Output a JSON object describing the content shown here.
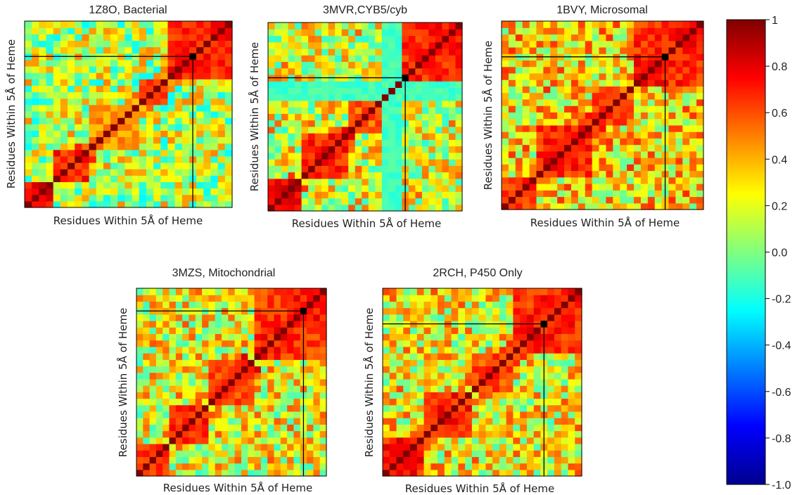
{
  "chart_data": [
    {
      "type": "heatmap",
      "title": "1Z8O, Bacterial",
      "xlabel": "Residues Within 5Å of Heme",
      "ylabel": "Residues Within 5Å of Heme",
      "n": 29,
      "marker_index": 23,
      "seed": 11,
      "blocks": [
        [
          0,
          3,
          0.8
        ],
        [
          4,
          8,
          0.72
        ],
        [
          9,
          15,
          0.5
        ],
        [
          16,
          19,
          0.7
        ],
        [
          20,
          28,
          0.7
        ]
      ],
      "bands": [],
      "background": 0.12
    },
    {
      "type": "heatmap",
      "title": "3MVR,CYB5/cyb",
      "xlabel": "Residues Within 5Å of Heme",
      "ylabel": "Residues Within 5Å of Heme",
      "n": 29,
      "marker_index": 20,
      "seed": 23,
      "blocks": [
        [
          0,
          4,
          0.8
        ],
        [
          5,
          11,
          0.72
        ],
        [
          12,
          16,
          0.6
        ],
        [
          20,
          28,
          0.72
        ]
      ],
      "bands": [
        [
          17,
          19,
          -0.12
        ]
      ],
      "background": 0.2
    },
    {
      "type": "heatmap",
      "title": "1BVY, Microsomal",
      "xlabel": "Residues Within 5Å of Heme",
      "ylabel": "Residues Within 5Å of Heme",
      "n": 29,
      "marker_index": 23,
      "seed": 37,
      "blocks": [
        [
          0,
          4,
          0.7
        ],
        [
          5,
          12,
          0.72
        ],
        [
          13,
          18,
          0.62
        ],
        [
          19,
          28,
          0.72
        ]
      ],
      "bands": [],
      "background": 0.3
    },
    {
      "type": "heatmap",
      "title": "3MZS, Mitochondrial",
      "xlabel": "Residues Within 5Å of Heme",
      "ylabel": "Residues Within 5Å of Heme",
      "n": 29,
      "marker_index": 25,
      "seed": 53,
      "blocks": [
        [
          0,
          4,
          0.7
        ],
        [
          5,
          10,
          0.72
        ],
        [
          11,
          17,
          0.65
        ],
        [
          18,
          28,
          0.72
        ]
      ],
      "bands": [],
      "background": 0.22
    },
    {
      "type": "heatmap",
      "title": "2RCH, P450 Only",
      "xlabel": "Residues Within 5Å of Heme",
      "ylabel": "Residues Within 5Å of Heme",
      "n": 29,
      "marker_index": 23,
      "seed": 71,
      "blocks": [
        [
          0,
          5,
          0.75
        ],
        [
          6,
          12,
          0.72
        ],
        [
          13,
          18,
          0.62
        ],
        [
          19,
          28,
          0.72
        ]
      ],
      "bands": [],
      "background": 0.25
    }
  ],
  "colorbar": {
    "ticks": [
      "1",
      "0.8",
      "0.6",
      "0.4",
      "0.2",
      "0.0",
      "-0.2",
      "-0.4",
      "-0.6",
      "-0.8",
      "-1.0"
    ],
    "range": [
      -1,
      1
    ],
    "colormap": "jet"
  }
}
